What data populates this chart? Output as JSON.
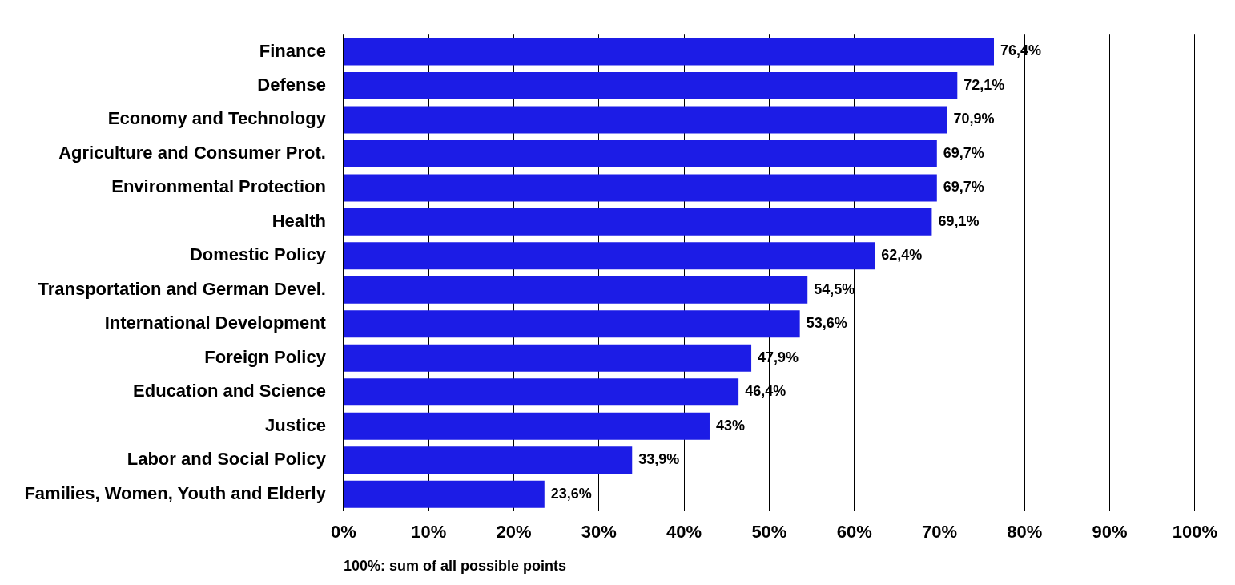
{
  "chart_data": {
    "type": "bar",
    "orientation": "horizontal",
    "categories": [
      "Finance",
      "Defense",
      "Economy and Technology",
      "Agriculture and Consumer Prot.",
      "Environmental Protection",
      "Health",
      "Domestic Policy",
      "Transportation and German Devel.",
      "International Development",
      "Foreign Policy",
      "Education and Science",
      "Justice",
      "Labor and Social Policy",
      "Families, Women, Youth and Elderly"
    ],
    "values": [
      76.4,
      72.1,
      70.9,
      69.7,
      69.7,
      69.1,
      62.4,
      54.5,
      53.6,
      47.9,
      46.4,
      43,
      33.9,
      23.6
    ],
    "value_labels": [
      "76,4%",
      "72,1%",
      "70,9%",
      "69,7%",
      "69,7%",
      "69,1%",
      "62,4%",
      "54,5%",
      "53,6%",
      "47,9%",
      "46,4%",
      "43%",
      "33,9%",
      "23,6%"
    ],
    "color": "#1c1ce6",
    "xlim": [
      0,
      100
    ],
    "xticks": [
      {
        "value": 0,
        "label": "0%"
      },
      {
        "value": 10,
        "label": "10%"
      },
      {
        "value": 20,
        "label": "20%"
      },
      {
        "value": 30,
        "label": "30%"
      },
      {
        "value": 40,
        "label": "40%"
      },
      {
        "value": 50,
        "label": "50%"
      },
      {
        "value": 60,
        "label": "60%"
      },
      {
        "value": 70,
        "label": "70%"
      },
      {
        "value": 80,
        "label": "80%"
      },
      {
        "value": 90,
        "label": "90%"
      },
      {
        "value": 100,
        "label": "100%"
      }
    ],
    "xlabel": "100%: sum of all possible points",
    "grid": "x",
    "legend": false
  }
}
